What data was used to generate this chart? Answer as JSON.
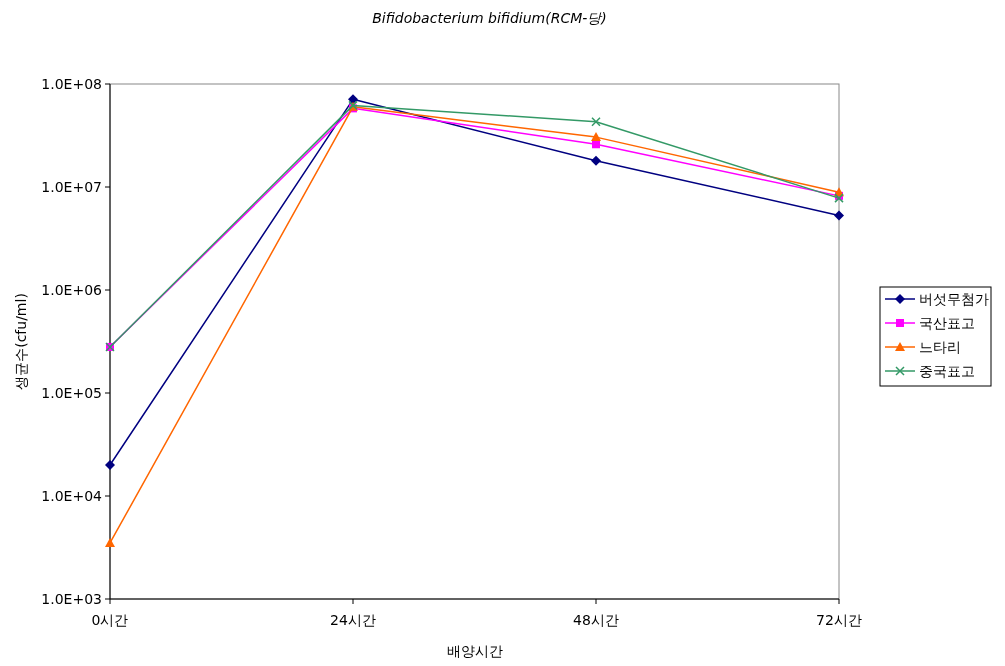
{
  "chart_data": {
    "type": "line",
    "title": "*Bifidobacterium bifidium(RCM-당)*",
    "xlabel": "배양시간",
    "ylabel": "생균수(cfu/ml)",
    "categories": [
      "0시간",
      "24시간",
      "48시간",
      "72시간"
    ],
    "log": "y",
    "ylim": [
      1000,
      100000000
    ],
    "yticks": [
      {
        "value": 1000,
        "label": "1.0E+03"
      },
      {
        "value": 10000,
        "label": "1.0E+04"
      },
      {
        "value": 100000,
        "label": "1.0E+05"
      },
      {
        "value": 1000000,
        "label": "1.0E+06"
      },
      {
        "value": 10000000,
        "label": "1.0E+07"
      },
      {
        "value": 100000000,
        "label": "1.0E+08"
      }
    ],
    "grid": false,
    "legend": "right",
    "series": [
      {
        "name": "버섯무첨가",
        "color": "#000080",
        "marker": "diamond",
        "values": [
          20000,
          71000000,
          18000000,
          5300000
        ]
      },
      {
        "name": "국산표고",
        "color": "#ff00ff",
        "marker": "square",
        "values": [
          280000,
          58000000,
          26000000,
          8200000
        ]
      },
      {
        "name": "느타리",
        "color": "#ff6600",
        "marker": "triangle",
        "values": [
          3500,
          60000000,
          30500000,
          8900000
        ]
      },
      {
        "name": "중국표고",
        "color": "#339966",
        "marker": "cross",
        "values": [
          280000,
          62000000,
          43000000,
          7800000
        ]
      }
    ]
  }
}
